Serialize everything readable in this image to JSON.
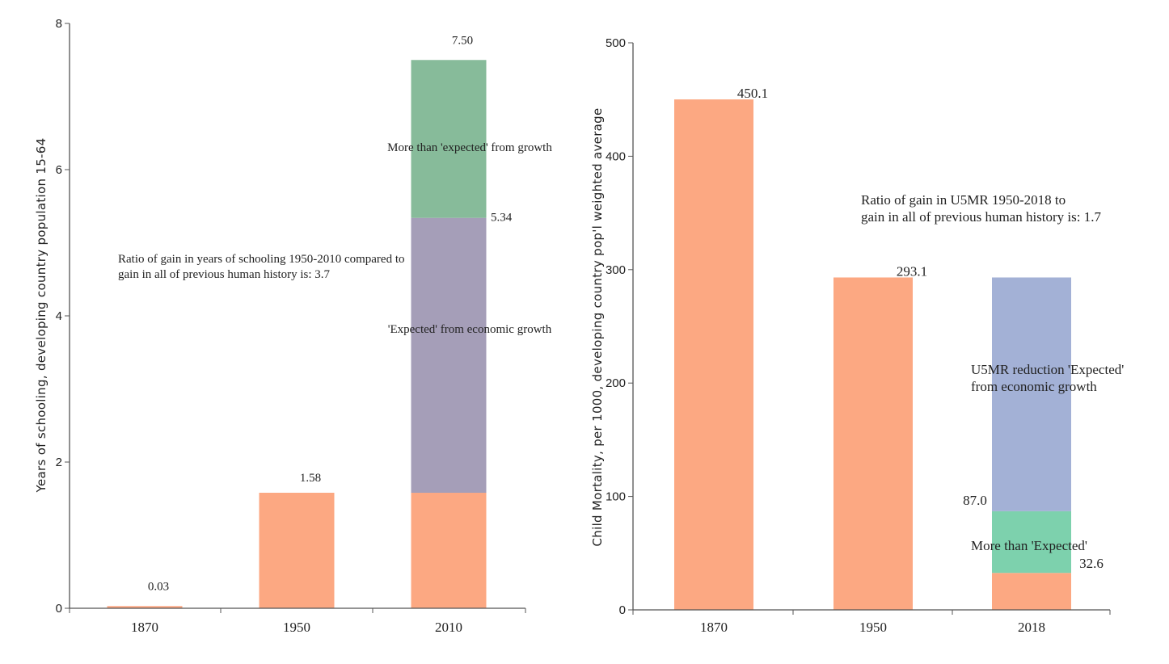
{
  "chart_data": [
    {
      "type": "bar",
      "stacked": true,
      "ylabel": "Years of schooling, developing country population 15-64",
      "xlabel": "",
      "ylim": [
        0,
        8
      ],
      "yticks": [
        "0",
        "2",
        "4",
        "6",
        "8"
      ],
      "categories": [
        "1870",
        "1950",
        "2010"
      ],
      "series": [
        {
          "color": "#fca882",
          "values": [
            0.03,
            1.58,
            1.58
          ]
        },
        {
          "color": "#a59eb8",
          "values": [
            0,
            0,
            3.76
          ]
        },
        {
          "color": "#87bb9a",
          "values": [
            0,
            0,
            2.16
          ]
        }
      ],
      "value_labels": [
        {
          "category": "1870",
          "text": "0.03",
          "value": 0.03
        },
        {
          "category": "1950",
          "text": "1.58",
          "value": 1.58
        },
        {
          "category": "2010",
          "text": "7.50",
          "value": 7.5
        },
        {
          "category": "2010",
          "text": "5.34",
          "value": 5.34
        }
      ],
      "annotations": [
        {
          "text": "More than 'expected' from growth"
        },
        {
          "text": "'Expected' from economic growth"
        },
        {
          "lines": [
            "Ratio of gain in years of schooling 1950-2010 compared to",
            "gain in all of previous human history is: 3.7"
          ]
        }
      ]
    },
    {
      "type": "bar",
      "stacked": true,
      "ylabel": "Child Mortality, per 1000, developing country pop'l weighted average",
      "xlabel": "",
      "ylim": [
        0,
        500
      ],
      "yticks": [
        "0",
        "100",
        "200",
        "300",
        "400",
        "500"
      ],
      "categories": [
        "1870",
        "1950",
        "2018"
      ],
      "series": [
        {
          "color": "#fca882",
          "values": [
            450.1,
            293.1,
            32.6
          ]
        },
        {
          "color": "#7dd1ad",
          "values": [
            0,
            0,
            54.4
          ]
        },
        {
          "color": "#a3b1d6",
          "values": [
            0,
            0,
            206.1
          ]
        }
      ],
      "value_labels": [
        {
          "category": "1870",
          "text": "450.1",
          "value": 450.1
        },
        {
          "category": "1950",
          "text": "293.1",
          "value": 293.1
        },
        {
          "category": "2018",
          "text": "87.0",
          "value": 87.0
        },
        {
          "category": "2018",
          "text": "32.6",
          "value": 32.6
        }
      ],
      "annotations": [
        {
          "lines": [
            "Ratio of gain in U5MR 1950-2018 to",
            "gain in all of previous human history is: 1.7"
          ]
        },
        {
          "lines": [
            "U5MR reduction 'Expected'",
            "from economic growth"
          ]
        },
        {
          "text": "More than 'Expected'"
        }
      ]
    }
  ]
}
